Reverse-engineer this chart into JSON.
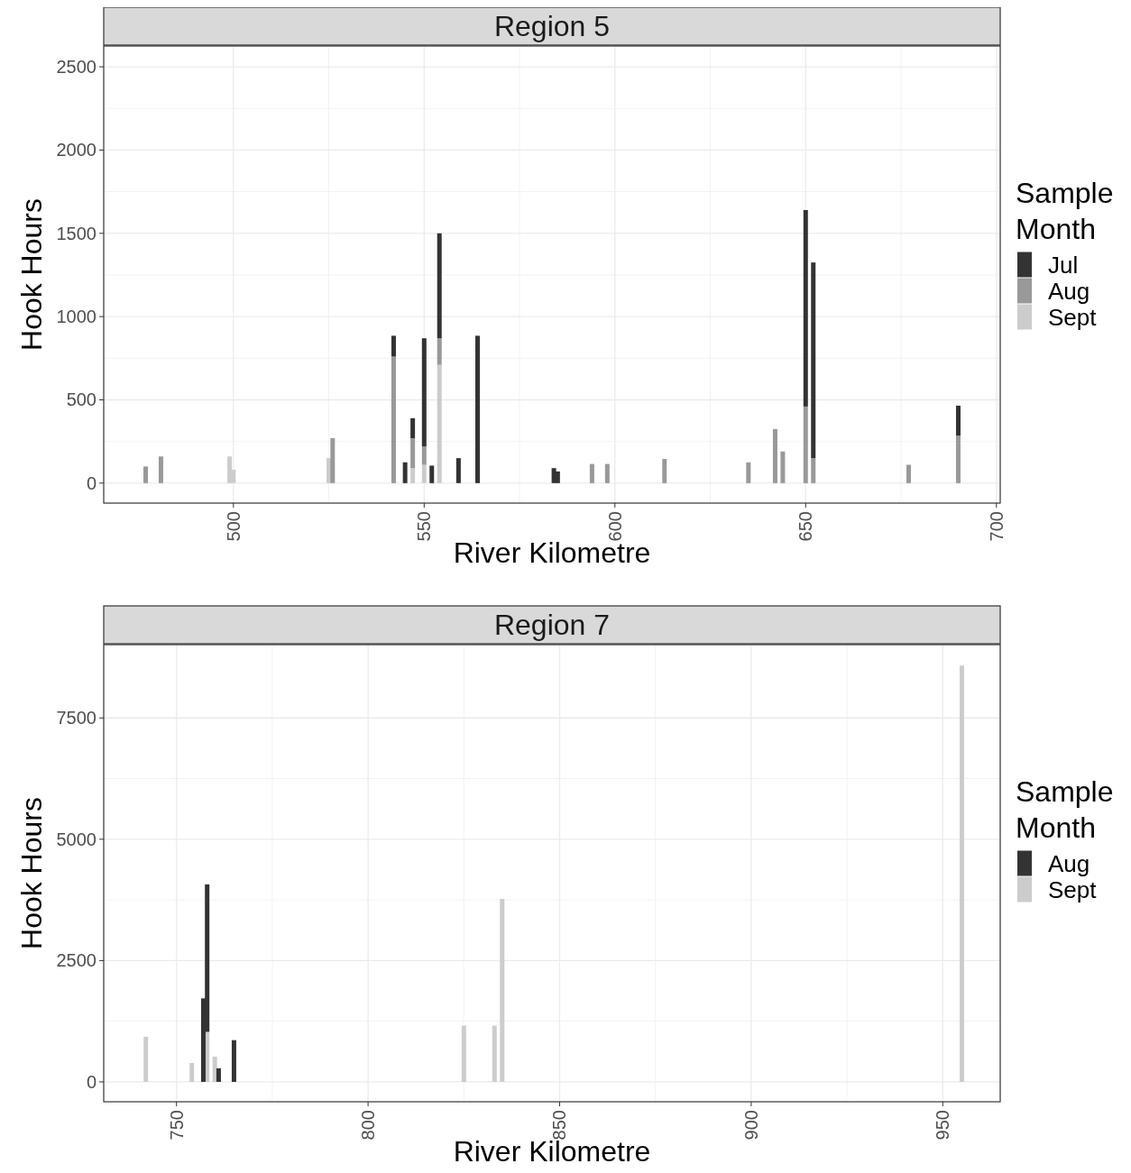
{
  "chart_data": [
    {
      "type": "bar",
      "title": "Region 5",
      "xlabel": "River Kilometre",
      "ylabel": "Hook Hours",
      "legend_title": "Sample Month",
      "legend": "right",
      "grid": true,
      "stacked": true,
      "x": [
        477,
        481,
        499,
        500,
        525,
        526,
        542,
        545,
        547,
        550,
        552,
        554,
        559,
        564,
        584,
        585,
        594,
        598,
        613,
        635,
        642,
        644,
        650,
        652,
        677,
        690
      ],
      "xlim": [
        466,
        701
      ],
      "xticks": [
        500,
        550,
        600,
        650,
        700
      ],
      "ylim": [
        -120,
        2625
      ],
      "yticks": [
        0,
        500,
        1000,
        1500,
        2000,
        2500
      ],
      "series": [
        {
          "name": "Sept",
          "color": "#cccccc",
          "values": [
            null,
            null,
            160,
            80,
            150,
            null,
            null,
            null,
            90,
            110,
            null,
            710,
            null,
            null,
            null,
            null,
            null,
            null,
            null,
            null,
            null,
            null,
            null,
            null,
            null,
            null
          ]
        },
        {
          "name": "Aug",
          "color": "#999999",
          "values": [
            100,
            160,
            null,
            null,
            null,
            270,
            760,
            null,
            180,
            110,
            null,
            160,
            null,
            null,
            null,
            null,
            115,
            115,
            145,
            125,
            325,
            190,
            460,
            150,
            110,
            285
          ]
        },
        {
          "name": "Jul",
          "color": "#333333",
          "values": [
            null,
            null,
            null,
            null,
            null,
            null,
            125,
            125,
            120,
            650,
            105,
            630,
            150,
            885,
            90,
            70,
            null,
            null,
            null,
            null,
            null,
            null,
            1180,
            1175,
            null,
            180
          ]
        }
      ]
    },
    {
      "type": "bar",
      "title": "Region 7",
      "xlabel": "River Kilometre",
      "ylabel": "Hook Hours",
      "legend_title": "Sample Month",
      "legend": "right",
      "grid": true,
      "stacked": true,
      "x": [
        742,
        754,
        757,
        758,
        760,
        761,
        765,
        825,
        833,
        835,
        955
      ],
      "xlim": [
        731,
        965
      ],
      "xticks": [
        750,
        800,
        850,
        900,
        950
      ],
      "ylim": [
        -410,
        9010
      ],
      "yticks": [
        0,
        2500,
        5000,
        7500
      ],
      "series": [
        {
          "name": "Sept",
          "color": "#cccccc",
          "values": [
            930,
            390,
            null,
            1030,
            520,
            null,
            null,
            1160,
            1160,
            3770,
            8580
          ]
        },
        {
          "name": "Aug",
          "color": "#333333",
          "values": [
            null,
            null,
            1720,
            3040,
            null,
            280,
            860,
            null,
            null,
            null,
            null
          ]
        }
      ]
    }
  ]
}
